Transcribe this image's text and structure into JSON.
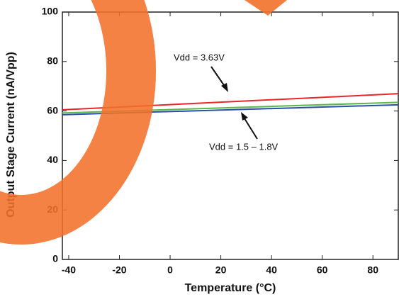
{
  "chart_data": {
    "type": "line",
    "x_label": "Temperature (°C)",
    "y_label": "Output Stage Current (nA/Vpp)",
    "x": [
      -42.5,
      90
    ],
    "series": [
      {
        "color": "#e8262b",
        "values": [
          60.5,
          67
        ]
      },
      {
        "color": "#5cb84a",
        "values": [
          59.2,
          63.5
        ]
      },
      {
        "color": "#2b4fa8",
        "values": [
          58.5,
          62.5
        ]
      }
    ],
    "annotations": [
      "Vdd = 3.63V",
      "Vdd = 1.5 – 1.8V"
    ],
    "xlim": [
      -42.5,
      90
    ],
    "xticks": [
      -40,
      -20,
      0,
      20,
      40,
      60,
      80
    ],
    "ylim": [
      0,
      100
    ],
    "yticks": [
      0,
      20,
      40,
      60,
      80,
      100
    ],
    "grid": false
  }
}
